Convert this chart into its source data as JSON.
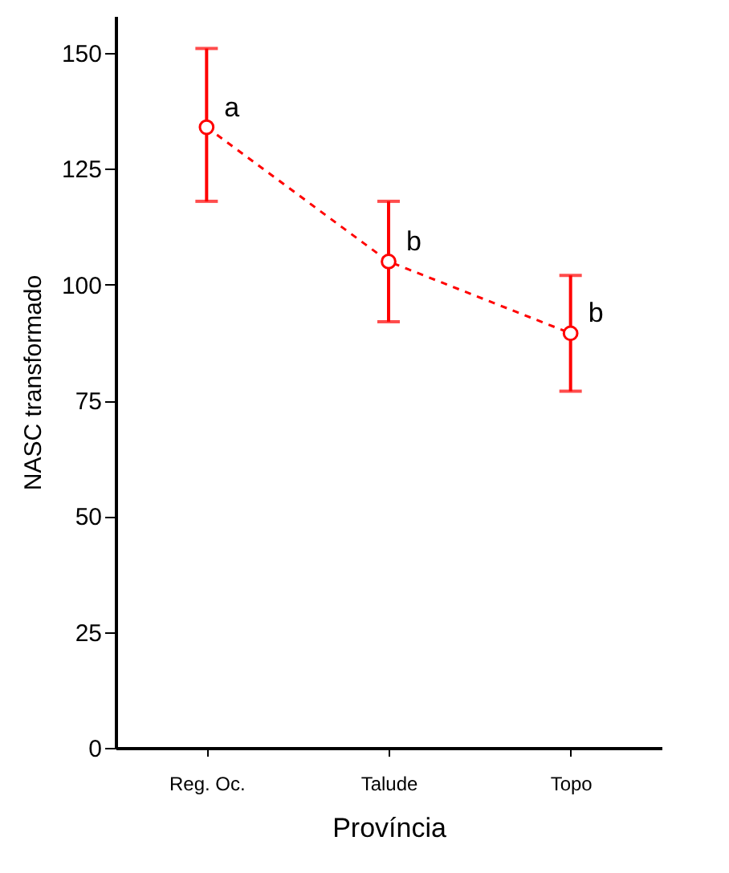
{
  "chart_data": {
    "type": "line",
    "xlabel": "Província",
    "ylabel": "NASC transformado",
    "categories": [
      "Reg. Oc.",
      "Talude",
      "Topo"
    ],
    "series": [
      {
        "color": "#ff0000",
        "values": [
          134,
          105,
          89.5
        ],
        "errors": [
          [
            118,
            151
          ],
          [
            92,
            118
          ],
          [
            77,
            102
          ]
        ]
      }
    ],
    "ylim": [
      0,
      158
    ],
    "yticks": [
      0,
      25,
      50,
      75,
      100,
      125,
      150
    ],
    "grid": false,
    "marker": "circle",
    "line_style": "dashed",
    "annotations": [
      {
        "text": "a",
        "x": "Reg. Oc.",
        "y": 134
      },
      {
        "text": "b",
        "x": "Talude",
        "y": 105
      },
      {
        "text": "b",
        "x": "Topo",
        "y": 89.5
      }
    ]
  }
}
